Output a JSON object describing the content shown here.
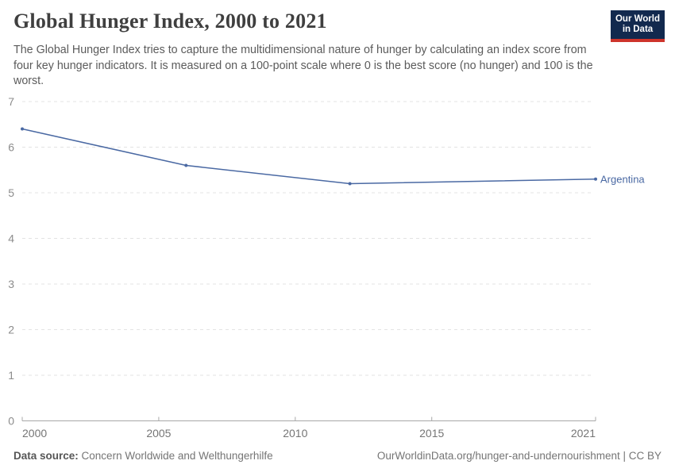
{
  "header": {
    "title": "Global Hunger Index, 2000 to 2021",
    "subtitle": "The Global Hunger Index tries to capture the multidimensional nature of hunger by calculating an index score from four key hunger indicators. It is measured on a 100-point scale where 0 is the best score (no hunger) and 100 is the worst.",
    "logo": {
      "line1": "Our World",
      "line2": "in Data"
    }
  },
  "chart_data": {
    "type": "line",
    "title": "Global Hunger Index, 2000 to 2021",
    "series": [
      {
        "name": "Argentina",
        "x": [
          2000,
          2006,
          2012,
          2021
        ],
        "values": [
          6.4,
          5.6,
          5.2,
          5.3
        ],
        "color": "#4A69A3"
      }
    ],
    "xlabel": "",
    "ylabel": "",
    "xlim": [
      2000,
      2021
    ],
    "ylim": [
      0,
      7
    ],
    "xticks": [
      2000,
      2005,
      2010,
      2015,
      2021
    ],
    "yticks": [
      0,
      1,
      2,
      3,
      4,
      5,
      6,
      7
    ],
    "grid": "horizontal-dashed",
    "legend_position": "end-of-line-label",
    "markers": true
  },
  "footer": {
    "source_label": "Data source:",
    "source_value": "Concern Worldwide and Welthungerhilfe",
    "attribution": "OurWorldinData.org/hunger-and-undernourishment | CC BY"
  },
  "colors": {
    "series_line": "#4A69A3",
    "logo_background": "#12294E",
    "logo_accent": "#CE342B",
    "gridline": "#e3e3e3",
    "axis": "#a8a8a8"
  }
}
